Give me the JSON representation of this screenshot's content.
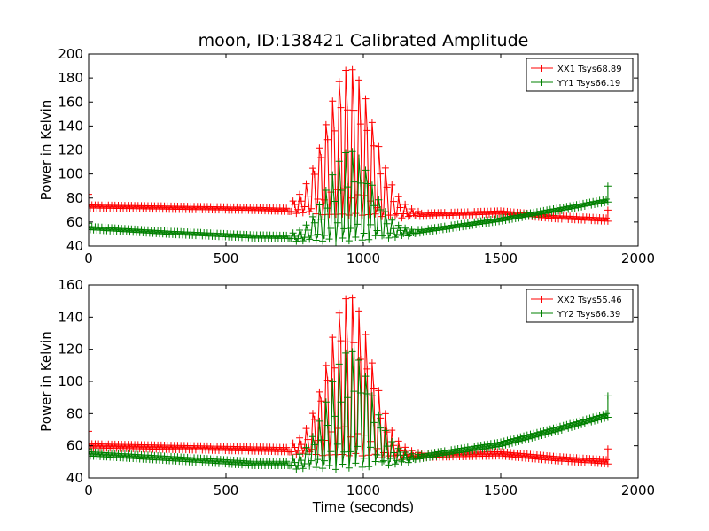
{
  "figure": {
    "title": "moon, ID:138421 Calibrated Amplitude",
    "xlabel": "Time (seconds)"
  },
  "chart_data": [
    {
      "type": "line",
      "ylabel": "Power in Kelvin",
      "xlim": [
        0,
        2000
      ],
      "ylim": [
        40,
        200
      ],
      "xticks": [
        0,
        500,
        1000,
        1500,
        2000
      ],
      "yticks": [
        40,
        60,
        80,
        100,
        120,
        140,
        160,
        180,
        200
      ],
      "legend_position": "top-right",
      "series": [
        {
          "name": "XX1 Tsys68.89",
          "color": "#ff0000",
          "baseline": [
            [
              0,
              73
            ],
            [
              300,
              72
            ],
            [
              600,
              71
            ],
            [
              900,
              69
            ],
            [
              1200,
              66
            ],
            [
              1500,
              68
            ],
            [
              1700,
              64
            ],
            [
              1890,
              62
            ]
          ],
          "source_peak": {
            "center": 950,
            "width": 120,
            "height": 118,
            "start": 730,
            "end": 1200
          },
          "endpoint_markers": [
            [
              0,
              83
            ],
            [
              1890,
              70
            ]
          ]
        },
        {
          "name": "YY1 Tsys66.19",
          "color": "#008000",
          "baseline": [
            [
              0,
              55
            ],
            [
              300,
              51
            ],
            [
              600,
              48
            ],
            [
              900,
              47
            ],
            [
              1200,
              52
            ],
            [
              1500,
              62
            ],
            [
              1700,
              70
            ],
            [
              1890,
              78
            ]
          ],
          "source_peak": {
            "center": 950,
            "width": 110,
            "height": 70,
            "start": 730,
            "end": 1200
          },
          "endpoint_markers": [
            [
              0,
              59
            ],
            [
              1890,
              90
            ]
          ]
        }
      ]
    },
    {
      "type": "line",
      "ylabel": "Power in Kelvin",
      "xlim": [
        0,
        2000
      ],
      "ylim": [
        40,
        160
      ],
      "xticks": [
        0,
        500,
        1000,
        1500,
        2000
      ],
      "yticks": [
        40,
        60,
        80,
        100,
        120,
        140,
        160
      ],
      "legend_position": "top-right",
      "series": [
        {
          "name": "XX2 Tsys55.46",
          "color": "#ff0000",
          "baseline": [
            [
              0,
              60
            ],
            [
              300,
              59
            ],
            [
              600,
              58
            ],
            [
              900,
              57
            ],
            [
              1200,
              54
            ],
            [
              1500,
              55
            ],
            [
              1700,
              52
            ],
            [
              1890,
              50
            ]
          ],
          "source_peak": {
            "center": 950,
            "width": 110,
            "height": 95,
            "start": 730,
            "end": 1200
          },
          "endpoint_markers": [
            [
              0,
              69
            ],
            [
              1890,
              58
            ]
          ]
        },
        {
          "name": "YY2 Tsys66.39",
          "color": "#008000",
          "baseline": [
            [
              0,
              55
            ],
            [
              300,
              52
            ],
            [
              600,
              49
            ],
            [
              900,
              49
            ],
            [
              1200,
              53
            ],
            [
              1500,
              61
            ],
            [
              1700,
              70
            ],
            [
              1890,
              79
            ]
          ],
          "source_peak": {
            "center": 950,
            "width": 110,
            "height": 68,
            "start": 730,
            "end": 1200
          },
          "endpoint_markers": [
            [
              0,
              58
            ],
            [
              1890,
              91
            ]
          ]
        }
      ]
    }
  ]
}
